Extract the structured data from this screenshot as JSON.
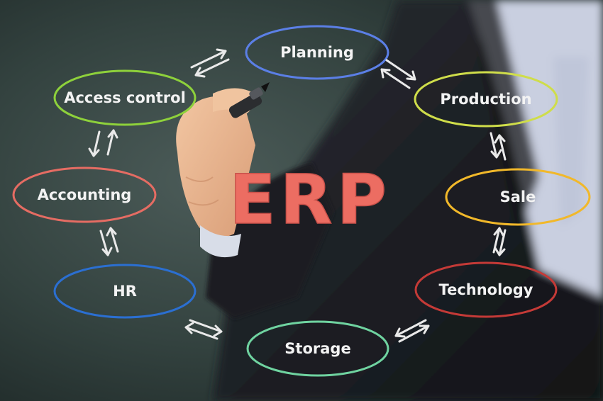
{
  "center_title": "ERP",
  "nodes": [
    {
      "id": "planning",
      "label": "Planning",
      "color": "#5b7fe6"
    },
    {
      "id": "production",
      "label": "Production",
      "color": "#cfdd4a"
    },
    {
      "id": "sale",
      "label": "Sale",
      "color": "#f1b82a"
    },
    {
      "id": "technology",
      "label": "Technology",
      "color": "#c43a37"
    },
    {
      "id": "storage",
      "label": "Storage",
      "color": "#6fd3a0"
    },
    {
      "id": "hr",
      "label": "HR",
      "color": "#2b6fd1"
    },
    {
      "id": "accounting",
      "label": "Accounting",
      "color": "#e56c63"
    },
    {
      "id": "access-control",
      "label": "Access control",
      "color": "#8ed13b"
    }
  ],
  "colors": {
    "erp_text": "#ec6d62",
    "arrow": "#e9e9e9",
    "suit": "#1a1c20",
    "shirt": "#cfd5e6",
    "skin": "#e9b68f"
  }
}
